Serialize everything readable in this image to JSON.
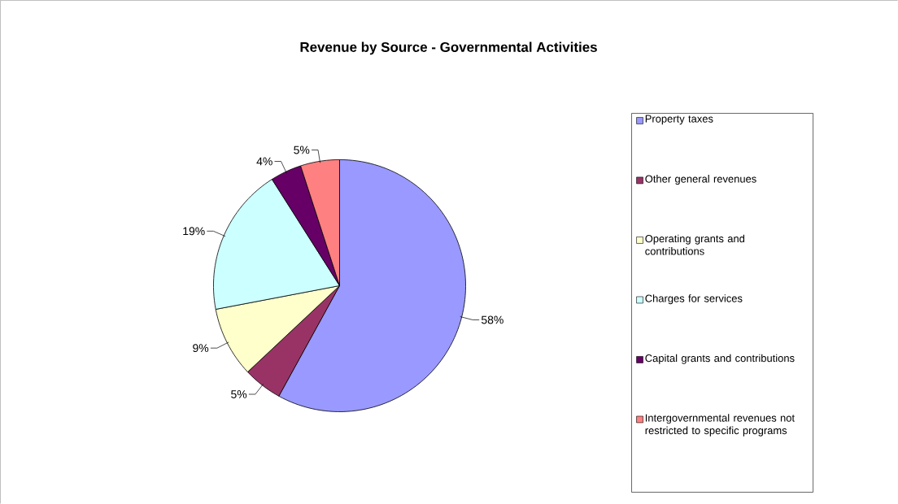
{
  "chart_data": {
    "type": "pie",
    "title": "Revenue by Source - Governmental Activities",
    "categories": [
      "Property taxes",
      "Other general revenues",
      "Operating grants and contributions",
      "Charges for services",
      "Capital grants and contributions",
      "Intergovernmental revenues not restricted to specific programs"
    ],
    "values": [
      58,
      5,
      9,
      19,
      4,
      5
    ],
    "value_labels": [
      "58%",
      "5%",
      "9%",
      "19%",
      "4%",
      "5%"
    ],
    "colors": [
      "#9999ff",
      "#993366",
      "#ffffcc",
      "#ccffff",
      "#660066",
      "#ff8080"
    ],
    "legend": "right"
  }
}
